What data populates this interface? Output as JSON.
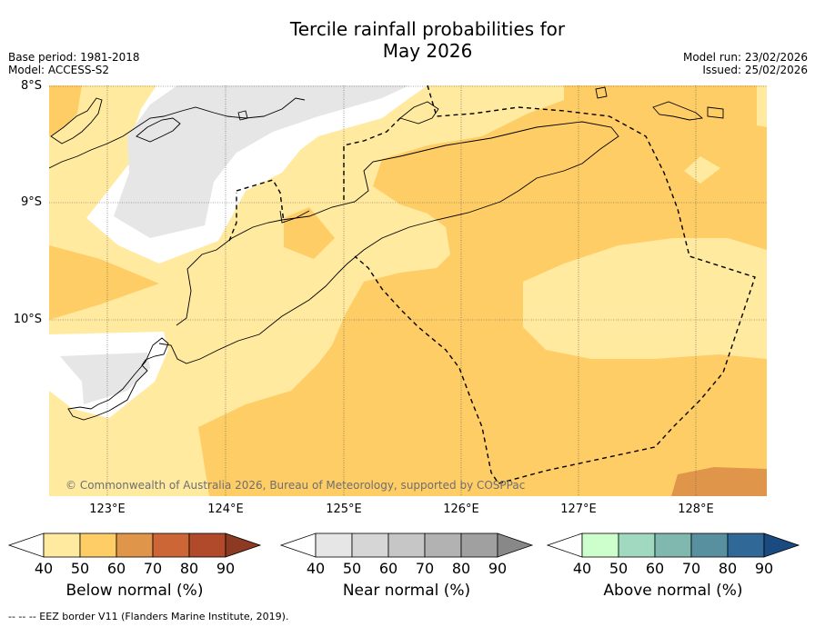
{
  "title_line1": "Tercile rainfall probabilities for",
  "title_line2": "May 2026",
  "base_period": "Base period: 1981-2018",
  "model": "Model: ACCESS-S2",
  "model_run": "Model run: 23/02/2026",
  "issued": "Issued: 25/02/2026",
  "lat_labels": [
    "8°S",
    "9°S",
    "10°S"
  ],
  "lon_labels": [
    "123°E",
    "124°E",
    "125°E",
    "126°E",
    "127°E",
    "128°E"
  ],
  "copyright": "© Commonwealth of Australia 2026, Bureau of Meteorology, supported by COSPPac",
  "colorbars": [
    {
      "label": "Below normal (%)",
      "ticks": [
        "40",
        "50",
        "60",
        "70",
        "80",
        "90"
      ],
      "under": "#ffffff",
      "colors": [
        "#ffeaa0",
        "#ffcd66",
        "#e0964a",
        "#cc6636",
        "#b04a2a"
      ],
      "over": "#8c3a22"
    },
    {
      "label": "Near normal (%)",
      "ticks": [
        "40",
        "50",
        "60",
        "70",
        "80",
        "90"
      ],
      "under": "#ffffff",
      "colors": [
        "#e6e6e6",
        "#d6d6d6",
        "#c6c6c6",
        "#b2b2b2",
        "#a0a0a0"
      ],
      "over": "#888888"
    },
    {
      "label": "Above normal (%)",
      "ticks": [
        "40",
        "50",
        "60",
        "70",
        "80",
        "90"
      ],
      "under": "#ffffff",
      "colors": [
        "#ccffcc",
        "#a0d8c0",
        "#80b8b0",
        "#5890a0",
        "#306898"
      ],
      "over": "#1a4a80"
    }
  ],
  "footer": "--  --  -- EEZ border V11 (Flanders Marine Institute, 2019)."
}
